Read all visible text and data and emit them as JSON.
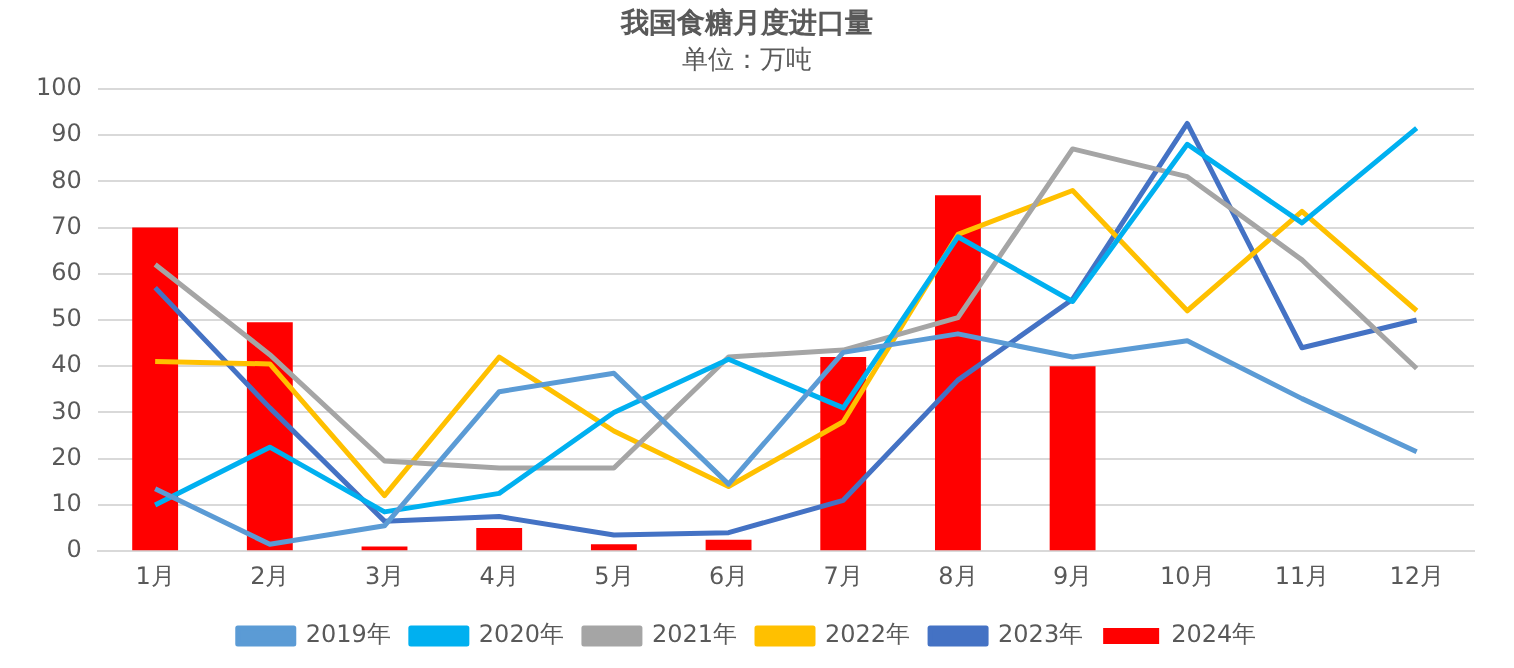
{
  "chart_data": {
    "type": "line",
    "title": "我国食糖月度进口量",
    "subtitle": "单位：万吨",
    "categories": [
      "1月",
      "2月",
      "3月",
      "4月",
      "5月",
      "6月",
      "7月",
      "8月",
      "9月",
      "10月",
      "11月",
      "12月"
    ],
    "series": [
      {
        "name": "2024年",
        "type": "bar",
        "color": "#ff0000",
        "values": [
          70,
          49.5,
          1,
          5,
          1.5,
          2.5,
          42,
          77,
          40,
          null,
          null,
          null
        ]
      },
      {
        "name": "2019年",
        "color": "#5b9bd5",
        "values": [
          13.5,
          1.5,
          5.5,
          34.5,
          38.5,
          14.5,
          43,
          47,
          42,
          45.5,
          33,
          21.5
        ]
      },
      {
        "name": "2020年",
        "color": "#00b0f0",
        "values": [
          10,
          22.5,
          8.5,
          12.5,
          30,
          41.5,
          31,
          68,
          54,
          88,
          71,
          91.5
        ]
      },
      {
        "name": "2021年",
        "color": "#a5a5a5",
        "values": [
          62,
          42.5,
          19.5,
          18,
          18,
          42,
          43.5,
          50.5,
          87,
          81,
          63,
          39.5
        ]
      },
      {
        "name": "2022年",
        "color": "#ffc000",
        "values": [
          41,
          40.5,
          12,
          42,
          26,
          14,
          28,
          68.5,
          78,
          52,
          73.5,
          52
        ]
      },
      {
        "name": "2023年",
        "color": "#4472c4",
        "values": [
          57,
          31,
          6.5,
          7.5,
          3.5,
          4,
          11,
          37,
          54.5,
          92.5,
          44,
          50
        ]
      }
    ],
    "ylim": [
      0,
      100
    ],
    "yticks": [
      0,
      10,
      20,
      30,
      40,
      50,
      60,
      70,
      80,
      90,
      100
    ],
    "grid": "y",
    "legend": "bottom",
    "marker": "none",
    "line_style": "solid"
  }
}
